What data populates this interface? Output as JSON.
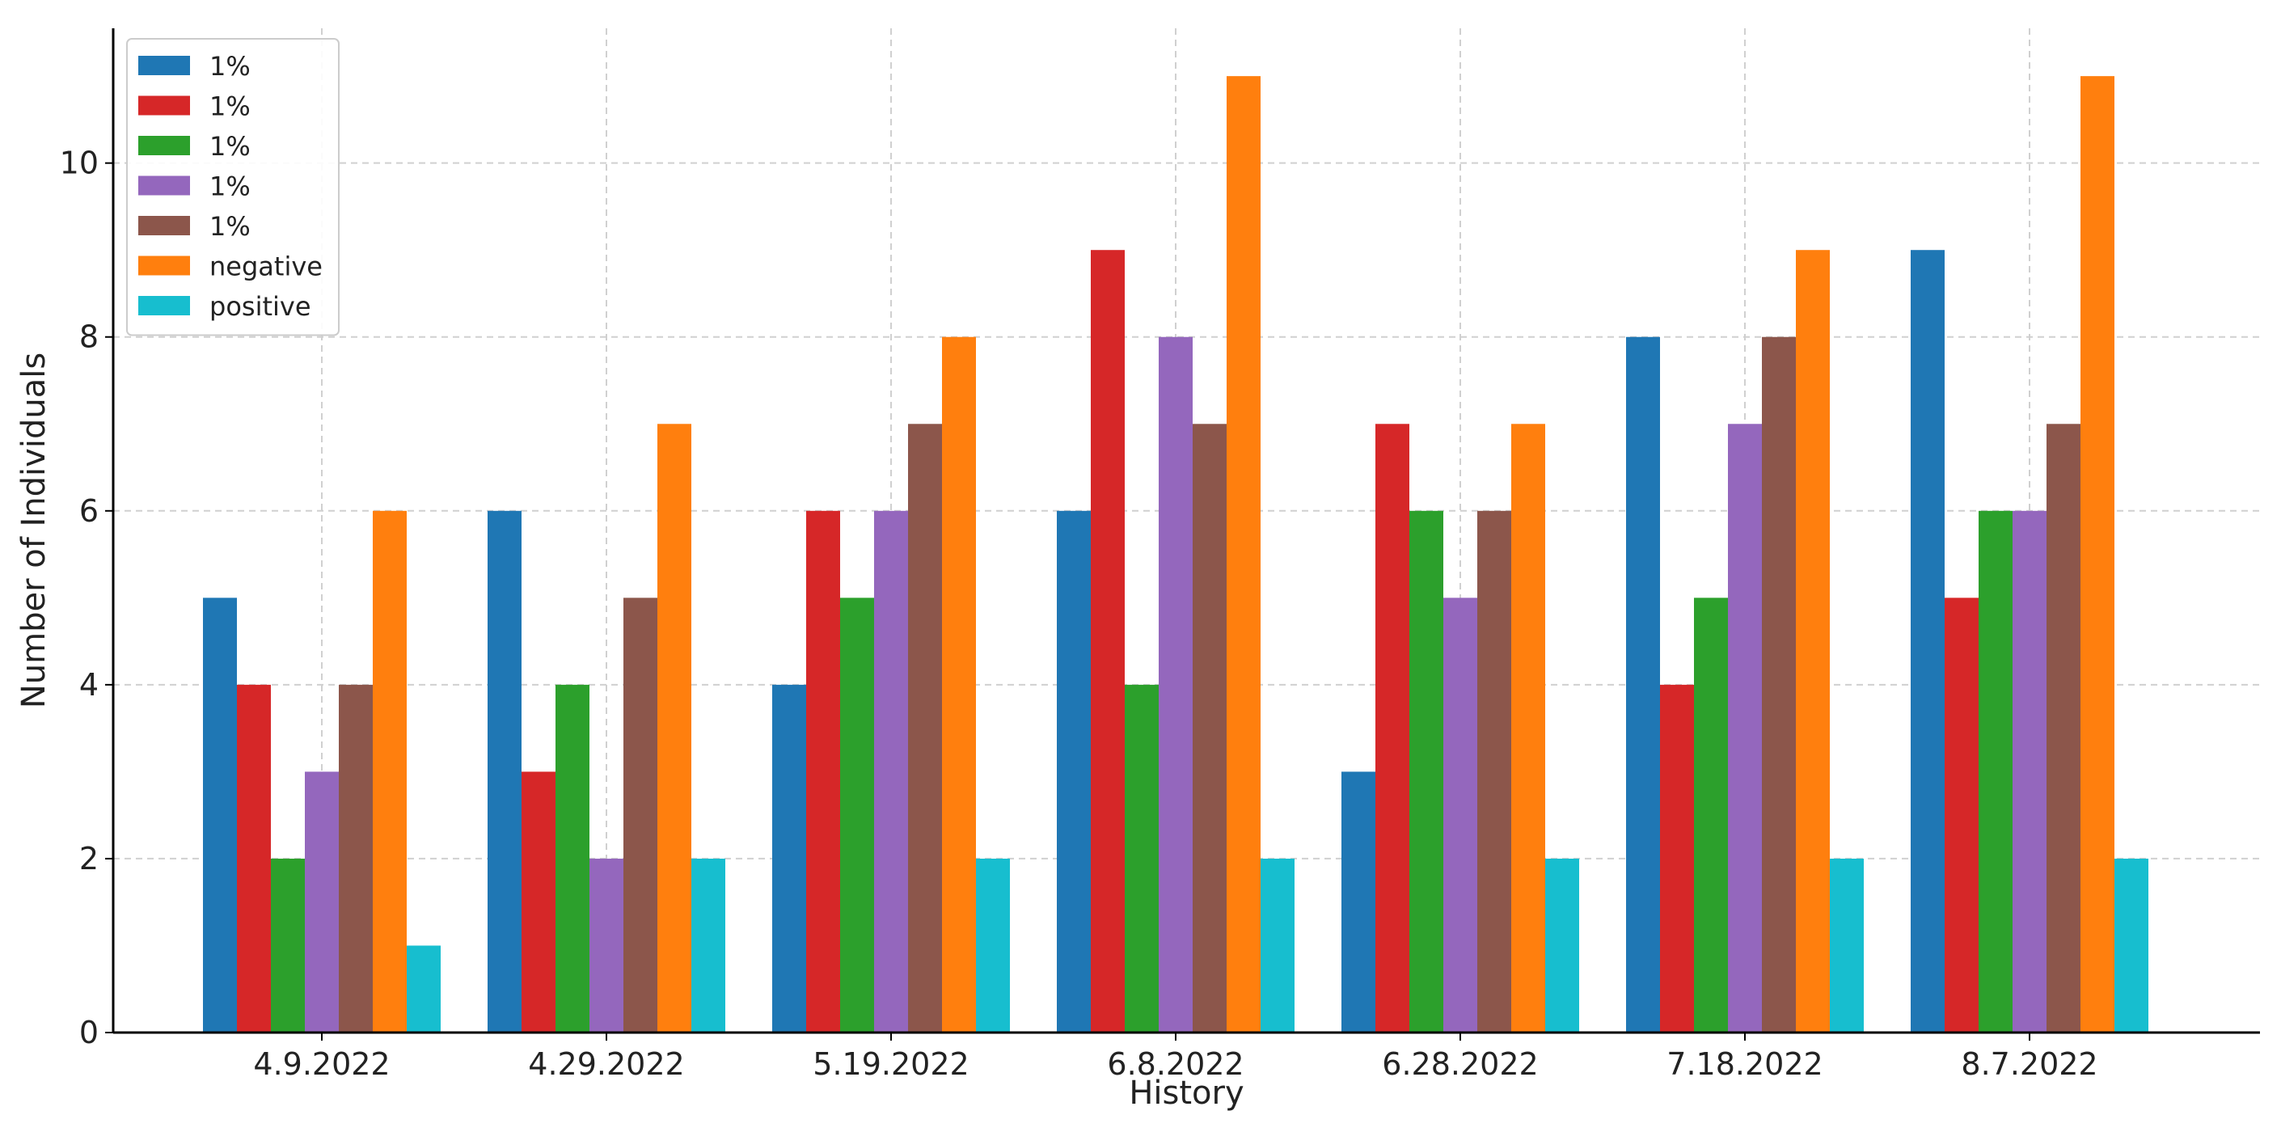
{
  "chart_data": {
    "type": "bar",
    "title": "",
    "xlabel": "History",
    "ylabel": "Number of Individuals",
    "categories": [
      "4.9.2022",
      "4.29.2022",
      "5.19.2022",
      "6.8.2022",
      "6.28.2022",
      "7.18.2022",
      "8.7.2022"
    ],
    "series": [
      {
        "name": "1%",
        "color": "#1f77b4",
        "values": [
          5,
          6,
          4,
          6,
          3,
          8,
          9
        ]
      },
      {
        "name": "1%",
        "color": "#d62728",
        "values": [
          4,
          3,
          6,
          9,
          7,
          4,
          5
        ]
      },
      {
        "name": "1%",
        "color": "#2ca02c",
        "values": [
          2,
          4,
          5,
          4,
          6,
          5,
          6
        ]
      },
      {
        "name": "1%",
        "color": "#9467bd",
        "values": [
          3,
          2,
          6,
          8,
          5,
          7,
          6
        ]
      },
      {
        "name": "1%",
        "color": "#8c564b",
        "values": [
          4,
          5,
          7,
          7,
          6,
          8,
          7
        ]
      },
      {
        "name": "negative",
        "color": "#ff7f0e",
        "values": [
          6,
          7,
          8,
          11,
          7,
          9,
          11
        ]
      },
      {
        "name": "positive",
        "color": "#17becf",
        "values": [
          1,
          2,
          2,
          2,
          2,
          2,
          2
        ]
      }
    ],
    "ylim": [
      0,
      11.55
    ],
    "yticks": [
      0,
      2,
      4,
      6,
      8,
      10
    ],
    "grid": true,
    "legend": "top-left"
  }
}
